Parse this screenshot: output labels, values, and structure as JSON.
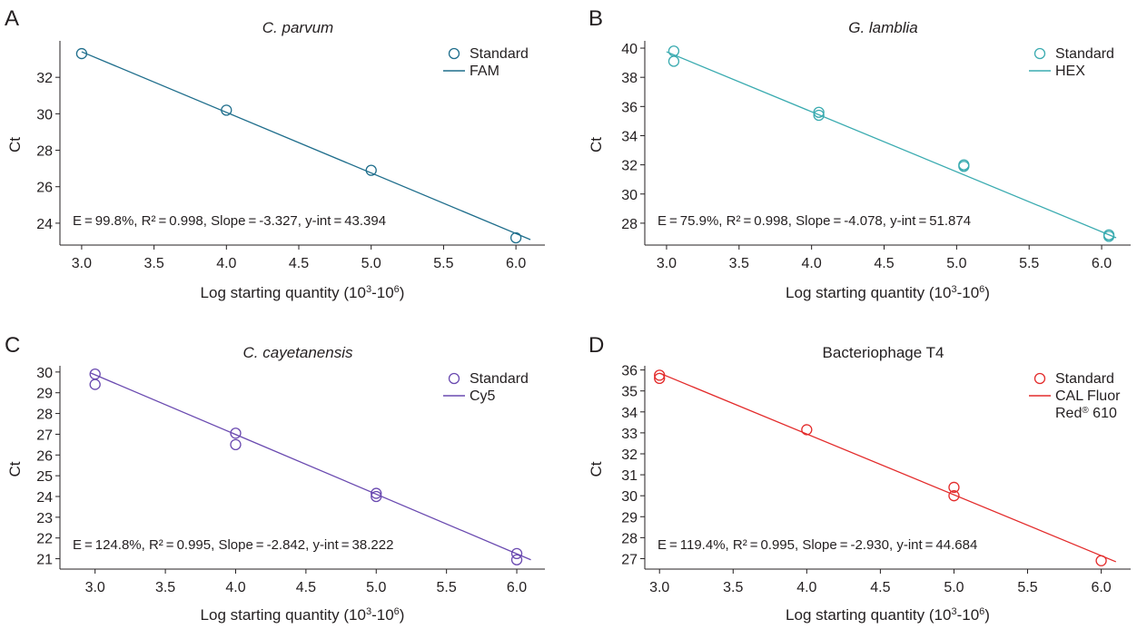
{
  "chart_data": [
    {
      "type": "scatter",
      "panel": "A",
      "title": "C. parvum",
      "title_italic": true,
      "xlabel": "Log starting quantity (10",
      "xlabel_sup1": "3",
      "xlabel_mid": "-10",
      "xlabel_sup2": "6",
      "xlabel_end": ")",
      "ylabel": "Ct",
      "xlim": [
        2.85,
        6.2
      ],
      "ylim": [
        22.8,
        34.0
      ],
      "xticks": [
        "3.0",
        "3.5",
        "4.0",
        "4.5",
        "5.0",
        "5.5",
        "6.0"
      ],
      "yticks": [
        "24",
        "26",
        "28",
        "30",
        "32"
      ],
      "color": "#1f6e8c",
      "legend": {
        "marker_label": "Standard",
        "line_label": "FAM",
        "line_label_2": ""
      },
      "points": [
        {
          "x": 3.0,
          "y": 33.3
        },
        {
          "x": 4.0,
          "y": 30.2
        },
        {
          "x": 5.0,
          "y": 26.9
        },
        {
          "x": 6.0,
          "y": 23.2
        }
      ],
      "fit": {
        "x1": 3.0,
        "y1": 33.4,
        "x2": 6.1,
        "y2": 23.1
      },
      "stats": "E = 99.8%, R² = 0.998, Slope = -3.327, y-int = 43.394"
    },
    {
      "type": "scatter",
      "panel": "B",
      "title": "G. lamblia",
      "title_italic": true,
      "xlabel": "Log starting quantity (10",
      "xlabel_sup1": "3",
      "xlabel_mid": "-10",
      "xlabel_sup2": "6",
      "xlabel_end": ")",
      "ylabel": "Ct",
      "xlim": [
        2.85,
        6.2
      ],
      "ylim": [
        26.5,
        40.5
      ],
      "xticks": [
        "3.0",
        "3.5",
        "4.0",
        "4.5",
        "5.0",
        "5.5",
        "6.0"
      ],
      "yticks": [
        "28",
        "30",
        "32",
        "34",
        "36",
        "38",
        "40"
      ],
      "color": "#3aabb0",
      "legend": {
        "marker_label": "Standard",
        "line_label": "HEX",
        "line_label_2": ""
      },
      "points": [
        {
          "x": 3.05,
          "y": 39.8
        },
        {
          "x": 3.05,
          "y": 39.1
        },
        {
          "x": 4.05,
          "y": 35.6
        },
        {
          "x": 4.05,
          "y": 35.4
        },
        {
          "x": 5.05,
          "y": 32.0
        },
        {
          "x": 5.05,
          "y": 31.9
        },
        {
          "x": 6.05,
          "y": 27.2
        },
        {
          "x": 6.05,
          "y": 27.1
        }
      ],
      "fit": {
        "x1": 3.0,
        "y1": 39.75,
        "x2": 6.1,
        "y2": 27.0
      },
      "stats": "E = 75.9%, R² = 0.998, Slope = -4.078, y-int = 51.874"
    },
    {
      "type": "scatter",
      "panel": "C",
      "title": "C. cayetanensis",
      "title_italic": true,
      "xlabel": "Log starting quantity (10",
      "xlabel_sup1": "3",
      "xlabel_mid": "-10",
      "xlabel_sup2": "6",
      "xlabel_end": ")",
      "ylabel": "Ct",
      "xlim": [
        2.75,
        6.2
      ],
      "ylim": [
        20.5,
        30.3
      ],
      "xticks": [
        "3.0",
        "3.5",
        "4.0",
        "4.5",
        "5.0",
        "5.5",
        "6.0"
      ],
      "yticks": [
        "21",
        "22",
        "23",
        "24",
        "25",
        "26",
        "27",
        "28",
        "29",
        "30"
      ],
      "color": "#6a4ab0",
      "legend": {
        "marker_label": "Standard",
        "line_label": "Cy5",
        "line_label_2": ""
      },
      "points": [
        {
          "x": 3.0,
          "y": 29.9
        },
        {
          "x": 3.0,
          "y": 29.4
        },
        {
          "x": 4.0,
          "y": 27.05
        },
        {
          "x": 4.0,
          "y": 26.5
        },
        {
          "x": 5.0,
          "y": 24.15
        },
        {
          "x": 5.0,
          "y": 24.0
        },
        {
          "x": 6.0,
          "y": 21.25
        },
        {
          "x": 6.0,
          "y": 20.95
        }
      ],
      "fit": {
        "x1": 2.97,
        "y1": 29.95,
        "x2": 6.1,
        "y2": 20.95
      },
      "stats": "E = 124.8%, R² = 0.995, Slope = -2.842, y-int = 38.222"
    },
    {
      "type": "scatter",
      "panel": "D",
      "title": "Bacteriophage T4",
      "title_italic": false,
      "xlabel": "Log starting quantity (10",
      "xlabel_sup1": "3",
      "xlabel_mid": "-10",
      "xlabel_sup2": "6",
      "xlabel_end": ")",
      "ylabel": "Ct",
      "xlim": [
        2.9,
        6.2
      ],
      "ylim": [
        26.5,
        36.2
      ],
      "xticks": [
        "3.0",
        "3.5",
        "4.0",
        "4.5",
        "5.0",
        "5.5",
        "6.0"
      ],
      "yticks": [
        "27",
        "28",
        "29",
        "30",
        "31",
        "32",
        "33",
        "34",
        "35",
        "36"
      ],
      "color": "#e32b2b",
      "legend": {
        "marker_label": "Standard",
        "line_label": "CAL Fluor",
        "line_label_2": "Red",
        "line_label_2_sup": "®",
        "line_label_2_end": " 610"
      },
      "points": [
        {
          "x": 3.0,
          "y": 35.75
        },
        {
          "x": 3.0,
          "y": 35.6
        },
        {
          "x": 4.0,
          "y": 33.15
        },
        {
          "x": 5.0,
          "y": 30.4
        },
        {
          "x": 5.0,
          "y": 30.0
        },
        {
          "x": 6.0,
          "y": 26.9
        }
      ],
      "fit": {
        "x1": 3.0,
        "y1": 35.85,
        "x2": 6.1,
        "y2": 26.85
      },
      "stats": "E = 119.4%, R² = 0.995, Slope = -2.930, y-int = 44.684"
    }
  ]
}
